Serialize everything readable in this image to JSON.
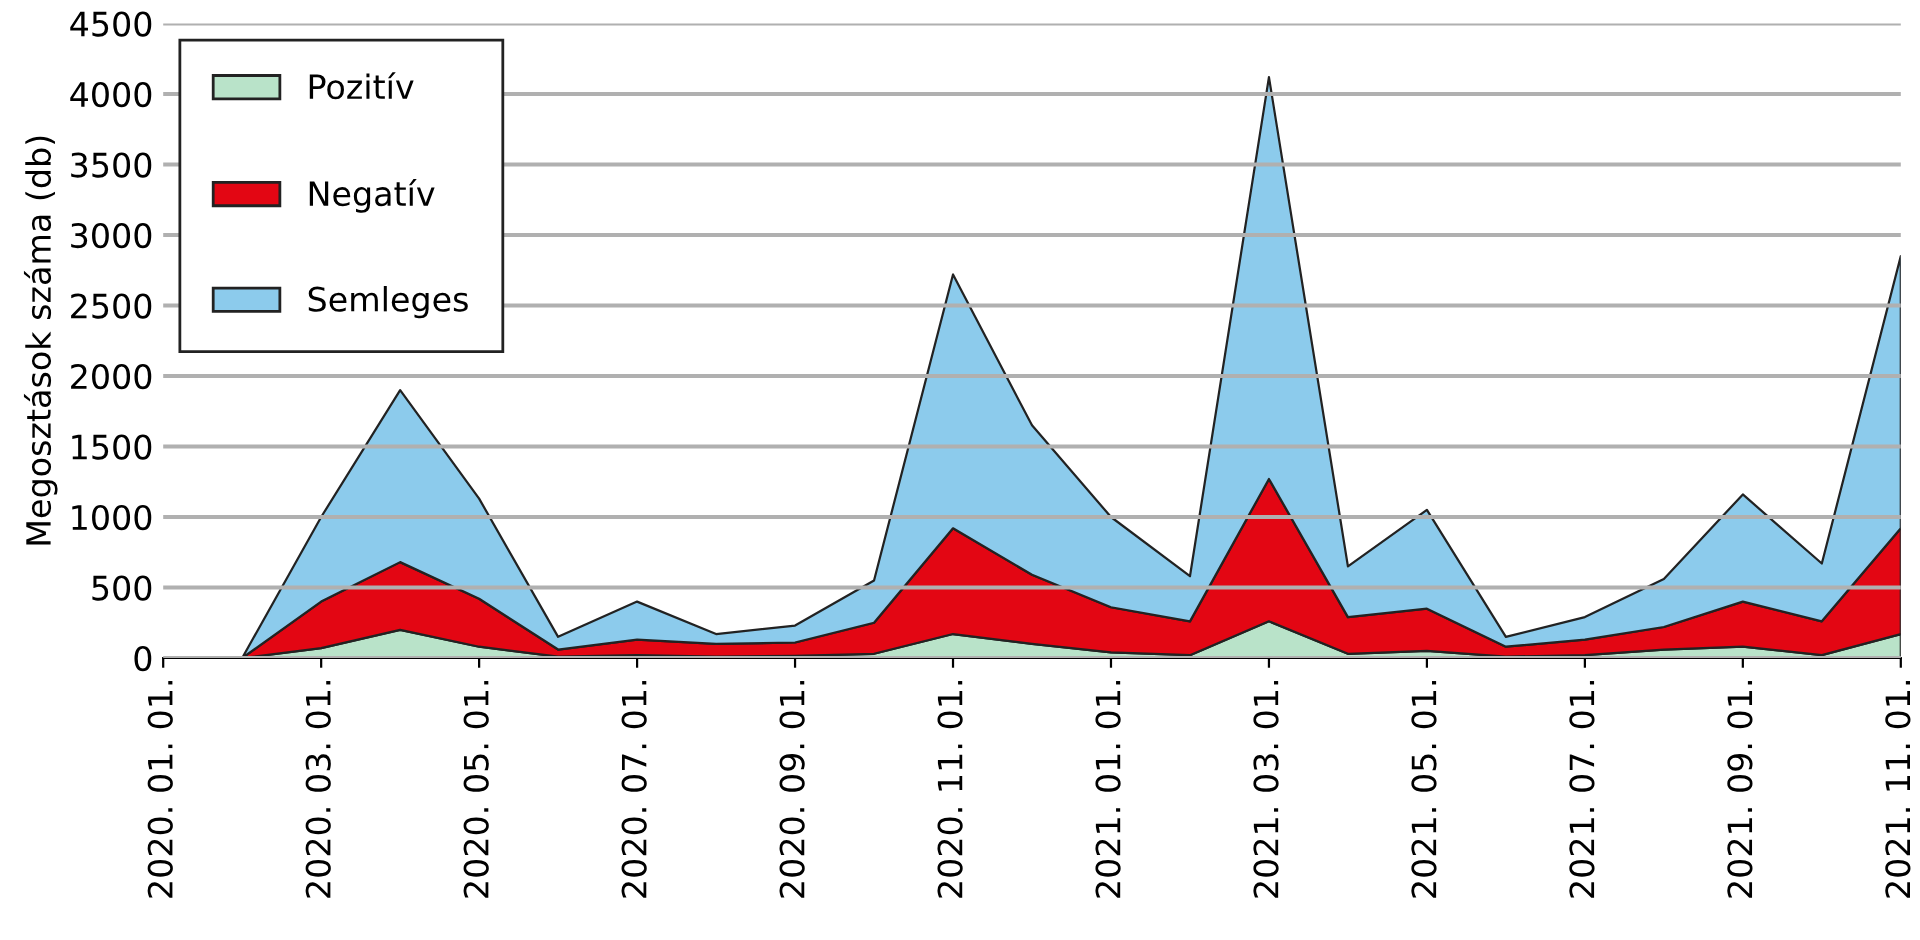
{
  "chart_data": {
    "type": "area",
    "stacked": true,
    "ylabel": "Megosztások száma (db)",
    "categories": [
      "2020. 01. 01.",
      null,
      "2020. 03. 01.",
      null,
      "2020. 05. 01.",
      null,
      "2020. 07. 01.",
      null,
      "2020. 09. 01.",
      null,
      "2020. 11. 01.",
      null,
      "2021. 01. 01.",
      null,
      "2021. 03. 01.",
      null,
      "2021. 05. 01.",
      null,
      "2021. 07. 01.",
      null,
      "2021. 09. 01.",
      null,
      "2021. 11. 01."
    ],
    "series": [
      {
        "name": "Pozitív",
        "color": "#b9e3c9",
        "values": [
          0,
          0,
          70,
          200,
          80,
          10,
          20,
          10,
          15,
          30,
          170,
          100,
          40,
          20,
          260,
          30,
          50,
          10,
          20,
          60,
          80,
          20,
          170
        ]
      },
      {
        "name": "Negatív",
        "color": "#e30613",
        "values": [
          0,
          0,
          330,
          480,
          340,
          50,
          110,
          90,
          95,
          220,
          750,
          490,
          320,
          240,
          1010,
          260,
          300,
          70,
          110,
          160,
          320,
          240,
          750
        ]
      },
      {
        "name": "Semleges",
        "color": "#8ccbec",
        "values": [
          0,
          0,
          600,
          1220,
          710,
          90,
          270,
          70,
          120,
          300,
          1800,
          1060,
          640,
          320,
          2850,
          360,
          700,
          70,
          160,
          340,
          760,
          410,
          1930
        ]
      }
    ],
    "ylim": [
      0,
      4500
    ],
    "yticks": [
      0,
      500,
      1000,
      1500,
      2000,
      2500,
      3000,
      3500,
      4000,
      4500
    ],
    "grid": "y",
    "legend": "top left"
  }
}
